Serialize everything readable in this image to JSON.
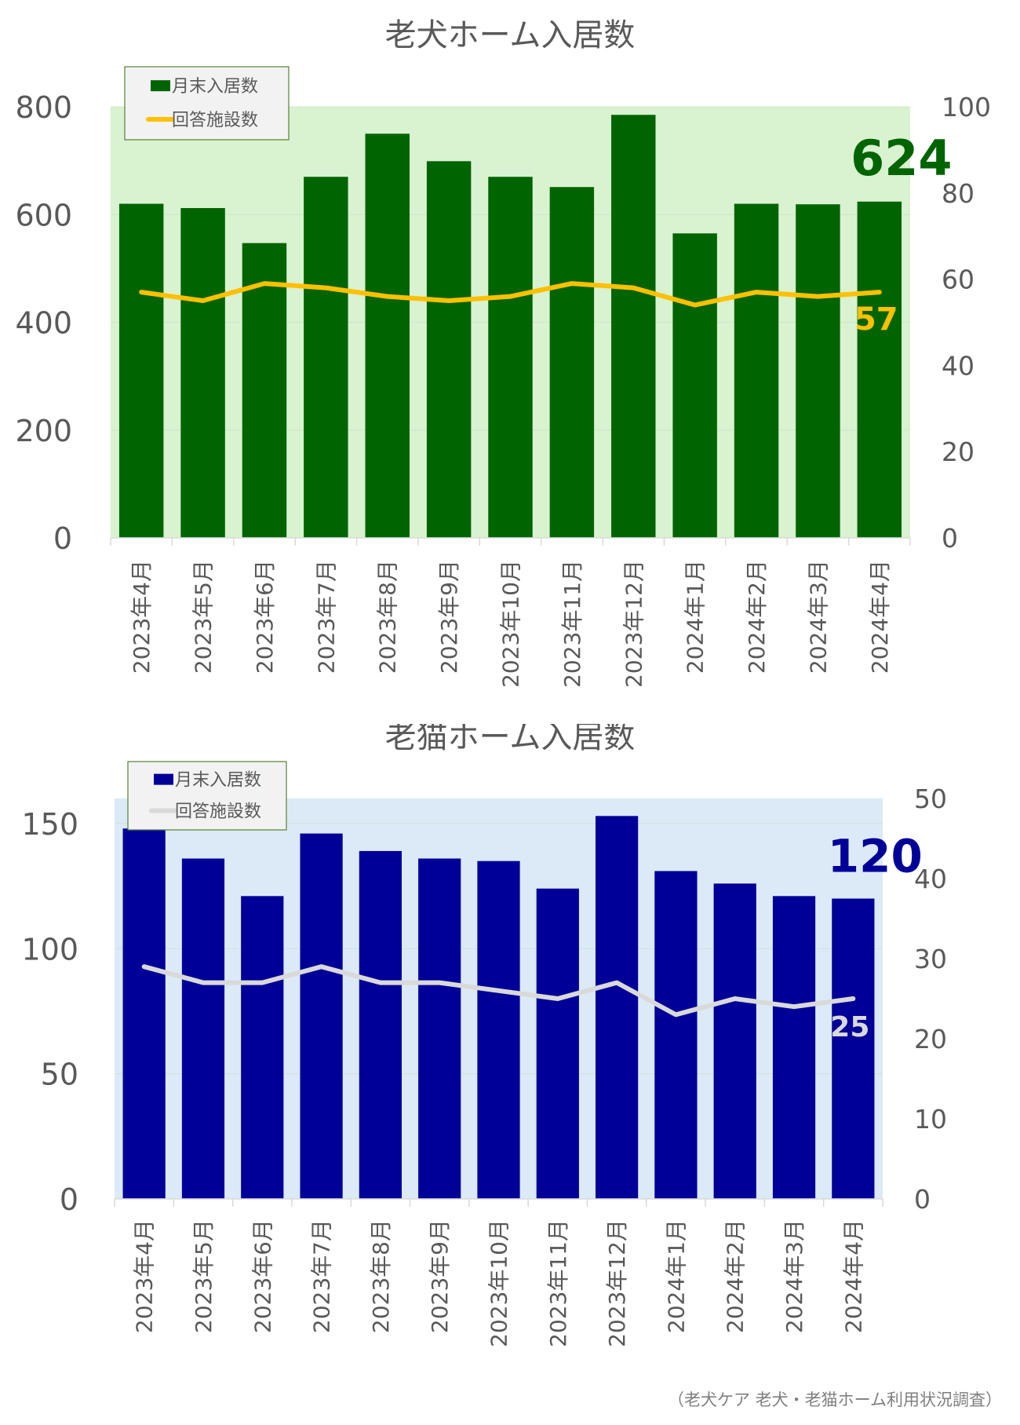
{
  "footer": "（老犬ケア 老犬・老猫ホーム利用状況調査）",
  "chart_data": [
    {
      "type": "bar",
      "title": "老犬ホーム入居数",
      "categories": [
        "2023年4月",
        "2023年5月",
        "2023年6月",
        "2023年7月",
        "2023年8月",
        "2023年9月",
        "2023年10月",
        "2023年11月",
        "2023年12月",
        "2024年1月",
        "2024年2月",
        "2024年3月",
        "2024年4月"
      ],
      "series": [
        {
          "name": "月末入居数",
          "type": "bar",
          "axis": "left",
          "color": "#006400",
          "values": [
            620,
            612,
            547,
            670,
            750,
            699,
            670,
            651,
            785,
            565,
            620,
            619,
            624
          ]
        },
        {
          "name": "回答施設数",
          "type": "line",
          "axis": "right",
          "color": "#FFC000",
          "values": [
            57,
            55,
            59,
            58,
            56,
            55,
            56,
            59,
            58,
            54,
            57,
            56,
            57
          ]
        }
      ],
      "ylim_left": [
        0,
        800
      ],
      "yticks_left": [
        0,
        200,
        400,
        600,
        800
      ],
      "ylim_right": [
        0,
        100
      ],
      "yticks_right": [
        0,
        20,
        40,
        60,
        80,
        100
      ],
      "plot_background": "#D9F2D0",
      "last_bar_label": "624",
      "last_line_label": "57",
      "legend": "top-left",
      "grid": true
    },
    {
      "type": "bar",
      "title": "老猫ホーム入居数",
      "categories": [
        "2023年4月",
        "2023年5月",
        "2023年6月",
        "2023年7月",
        "2023年8月",
        "2023年9月",
        "2023年10月",
        "2023年11月",
        "2023年12月",
        "2024年1月",
        "2024年2月",
        "2024年3月",
        "2024年4月"
      ],
      "series": [
        {
          "name": "月末入居数",
          "type": "bar",
          "axis": "left",
          "color": "#000099",
          "values": [
            148,
            136,
            121,
            146,
            139,
            136,
            135,
            124,
            153,
            131,
            126,
            121,
            120
          ]
        },
        {
          "name": "回答施設数",
          "type": "line",
          "axis": "right",
          "color": "#D9D9D9",
          "values": [
            29,
            27,
            27,
            29,
            27,
            27,
            26,
            25,
            27,
            23,
            25,
            24,
            25
          ]
        }
      ],
      "ylim_left": [
        0,
        160
      ],
      "yticks_left": [
        0,
        50,
        100,
        150
      ],
      "ylim_right": [
        0,
        50
      ],
      "yticks_right": [
        0,
        10,
        20,
        30,
        40,
        50
      ],
      "plot_background": "#DCEAF7",
      "last_bar_label": "120",
      "last_line_label": "25",
      "legend": "top-left",
      "grid": true
    }
  ]
}
